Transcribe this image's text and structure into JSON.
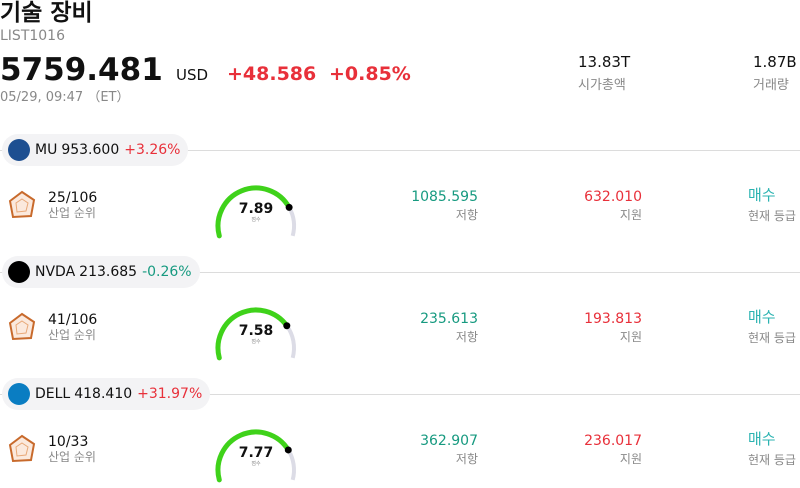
{
  "header": {
    "title": "기술 장비",
    "code": "LIST1016",
    "price": "5759.481",
    "currency": "USD",
    "change": "+48.586",
    "change_pct": "+0.85%",
    "timestamp": "05/29, 09:47 （ET）"
  },
  "stats": [
    {
      "value": "13.83T",
      "label": "시가총액"
    },
    {
      "value": "1.87B",
      "label": "거래량"
    }
  ],
  "stocks": [
    {
      "ticker": "MU",
      "price": "953.600",
      "change": "+3.26%",
      "rank": "25/106",
      "rank_label": "산업 순위",
      "score": "7.89",
      "score_label": "점수",
      "resistance": "1085.595",
      "resistance_label": "저항",
      "support": "632.010",
      "support_label": "지원",
      "rating": "매수",
      "rating_label": "현재 등급"
    },
    {
      "ticker": "NVDA",
      "price": "213.685",
      "change": "-0.26%",
      "rank": "41/106",
      "rank_label": "산업 순위",
      "score": "7.58",
      "score_label": "점수",
      "resistance": "235.613",
      "resistance_label": "저항",
      "support": "193.813",
      "support_label": "지원",
      "rating": "매수",
      "rating_label": "현재 등급"
    },
    {
      "ticker": "DELL",
      "price": "418.410",
      "change": "+31.97%",
      "rank": "10/33",
      "rank_label": "산업 순위",
      "score": "7.77",
      "score_label": "점수",
      "resistance": "362.907",
      "resistance_label": "저항",
      "support": "236.017",
      "support_label": "지원",
      "rating": "매수",
      "rating_label": "현재 등급"
    }
  ]
}
